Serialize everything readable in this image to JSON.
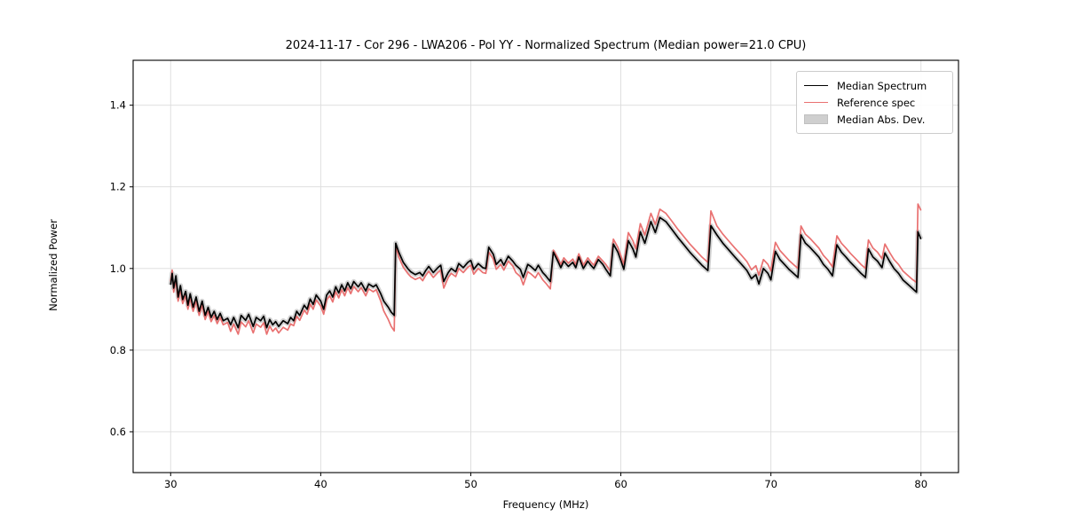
{
  "title": "2024-11-17 - Cor 296 - LWA206 - Pol YY - Normalized Spectrum (Median power=21.0 CPU)",
  "legend": {
    "items": [
      {
        "label": "Median Spectrum",
        "type": "line",
        "color": "#000000"
      },
      {
        "label": "Reference spec",
        "type": "line",
        "color": "#e97171"
      },
      {
        "label": "Median Abs. Dev.",
        "type": "patch",
        "color": "#cfcfcf"
      }
    ]
  },
  "colors": {
    "grid": "#dcdcdc",
    "spine": "#000000",
    "band": "#c3c3c3"
  },
  "chart_data": {
    "type": "line",
    "title": "2024-11-17 - Cor 296 - LWA206 - Pol YY - Normalized Spectrum (Median power=21.0 CPU)",
    "xlabel": "Frequency (MHz)",
    "ylabel": "Normalized Power",
    "xlim": [
      27.5,
      82.5
    ],
    "ylim": [
      0.5,
      1.51
    ],
    "xticks": [
      30,
      40,
      50,
      60,
      70,
      80
    ],
    "yticks": [
      0.6,
      0.8,
      1.0,
      1.2,
      1.4
    ],
    "grid": true,
    "legend_position": "upper right",
    "x": [
      30.0,
      30.1,
      30.2,
      30.35,
      30.5,
      30.65,
      30.8,
      31.0,
      31.15,
      31.3,
      31.5,
      31.7,
      31.9,
      32.1,
      32.3,
      32.5,
      32.7,
      32.9,
      33.1,
      33.3,
      33.5,
      33.8,
      34.0,
      34.2,
      34.5,
      34.7,
      35.0,
      35.2,
      35.5,
      35.7,
      36.0,
      36.2,
      36.4,
      36.6,
      36.8,
      37.0,
      37.2,
      37.5,
      37.8,
      38.0,
      38.2,
      38.4,
      38.6,
      38.9,
      39.1,
      39.3,
      39.5,
      39.7,
      40.0,
      40.2,
      40.4,
      40.6,
      40.8,
      41.0,
      41.2,
      41.4,
      41.6,
      41.8,
      42.0,
      42.2,
      42.5,
      42.7,
      43.0,
      43.2,
      43.5,
      43.7,
      44.0,
      44.2,
      44.5,
      44.7,
      44.9,
      45.0,
      45.2,
      45.5,
      45.8,
      46.0,
      46.3,
      46.6,
      46.8,
      47.0,
      47.2,
      47.5,
      47.8,
      48.0,
      48.2,
      48.5,
      48.7,
      49.0,
      49.2,
      49.5,
      49.8,
      50.0,
      50.2,
      50.5,
      50.8,
      51.0,
      51.2,
      51.5,
      51.7,
      52.0,
      52.2,
      52.5,
      52.8,
      53.0,
      53.3,
      53.5,
      53.8,
      54.0,
      54.3,
      54.5,
      54.8,
      55.0,
      55.3,
      55.5,
      55.8,
      56.0,
      56.2,
      56.5,
      56.8,
      57.0,
      57.2,
      57.5,
      57.8,
      58.0,
      58.2,
      58.5,
      58.8,
      59.0,
      59.3,
      59.5,
      59.8,
      60.0,
      60.2,
      60.5,
      60.8,
      61.0,
      61.3,
      61.6,
      62.0,
      62.3,
      62.6,
      63.0,
      63.4,
      63.8,
      64.2,
      64.6,
      65.0,
      65.4,
      65.8,
      66.0,
      66.4,
      66.8,
      67.2,
      67.6,
      68.0,
      68.4,
      68.7,
      69.0,
      69.2,
      69.5,
      69.8,
      70.0,
      70.3,
      70.6,
      70.9,
      71.2,
      71.5,
      71.8,
      72.0,
      72.3,
      72.6,
      72.9,
      73.2,
      73.5,
      73.8,
      74.1,
      74.4,
      74.7,
      75.0,
      75.3,
      75.7,
      76.0,
      76.3,
      76.5,
      76.8,
      77.1,
      77.4,
      77.6,
      77.9,
      78.2,
      78.5,
      78.8,
      79.1,
      79.4,
      79.7,
      79.8,
      80.0
    ],
    "series": [
      {
        "name": "Median Spectrum",
        "color": "#000000",
        "values": [
          0.96,
          0.988,
          0.952,
          0.982,
          0.93,
          0.958,
          0.924,
          0.944,
          0.91,
          0.938,
          0.905,
          0.93,
          0.895,
          0.92,
          0.885,
          0.905,
          0.88,
          0.895,
          0.875,
          0.89,
          0.872,
          0.878,
          0.862,
          0.88,
          0.855,
          0.885,
          0.873,
          0.888,
          0.858,
          0.88,
          0.872,
          0.883,
          0.855,
          0.875,
          0.862,
          0.87,
          0.858,
          0.872,
          0.865,
          0.88,
          0.872,
          0.895,
          0.885,
          0.91,
          0.9,
          0.925,
          0.912,
          0.935,
          0.92,
          0.9,
          0.935,
          0.945,
          0.93,
          0.955,
          0.94,
          0.96,
          0.945,
          0.965,
          0.95,
          0.968,
          0.955,
          0.965,
          0.945,
          0.962,
          0.955,
          0.96,
          0.938,
          0.92,
          0.905,
          0.893,
          0.885,
          1.062,
          1.04,
          1.015,
          1.0,
          0.992,
          0.985,
          0.99,
          0.982,
          0.995,
          1.005,
          0.99,
          1.002,
          1.008,
          0.968,
          0.99,
          1.0,
          0.992,
          1.012,
          1.002,
          1.015,
          1.02,
          0.998,
          1.012,
          1.002,
          1.0,
          1.052,
          1.035,
          1.01,
          1.022,
          1.008,
          1.03,
          1.018,
          1.008,
          0.998,
          0.978,
          1.01,
          1.005,
          0.995,
          1.008,
          0.99,
          0.982,
          0.968,
          1.04,
          1.018,
          1.002,
          1.018,
          1.005,
          1.015,
          1.002,
          1.028,
          1.0,
          1.018,
          1.008,
          1.0,
          1.022,
          1.01,
          0.998,
          0.982,
          1.06,
          1.04,
          1.02,
          0.998,
          1.068,
          1.048,
          1.028,
          1.09,
          1.062,
          1.115,
          1.088,
          1.125,
          1.115,
          1.096,
          1.076,
          1.058,
          1.04,
          1.024,
          1.008,
          0.995,
          1.105,
          1.082,
          1.062,
          1.045,
          1.028,
          1.012,
          0.995,
          0.975,
          0.985,
          0.962,
          1.0,
          0.988,
          0.972,
          1.042,
          1.022,
          1.01,
          0.998,
          0.988,
          0.978,
          1.082,
          1.062,
          1.052,
          1.04,
          1.028,
          1.01,
          0.998,
          0.982,
          1.058,
          1.04,
          1.028,
          1.015,
          1.0,
          0.988,
          0.978,
          1.048,
          1.028,
          1.018,
          1.002,
          1.038,
          1.018,
          1.0,
          0.988,
          0.972,
          0.962,
          0.952,
          0.942,
          1.09,
          1.072
        ]
      },
      {
        "name": "Reference spec",
        "color": "#e97171",
        "values": [
          0.968,
          0.996,
          0.942,
          0.972,
          0.92,
          0.948,
          0.914,
          0.934,
          0.9,
          0.928,
          0.895,
          0.92,
          0.885,
          0.91,
          0.875,
          0.895,
          0.87,
          0.885,
          0.865,
          0.88,
          0.862,
          0.868,
          0.846,
          0.864,
          0.839,
          0.869,
          0.857,
          0.872,
          0.842,
          0.864,
          0.856,
          0.867,
          0.839,
          0.859,
          0.846,
          0.854,
          0.842,
          0.856,
          0.849,
          0.864,
          0.86,
          0.883,
          0.873,
          0.898,
          0.888,
          0.913,
          0.9,
          0.923,
          0.908,
          0.888,
          0.923,
          0.933,
          0.918,
          0.943,
          0.928,
          0.948,
          0.933,
          0.953,
          0.938,
          0.956,
          0.943,
          0.953,
          0.933,
          0.95,
          0.943,
          0.948,
          0.92,
          0.896,
          0.875,
          0.858,
          0.847,
          1.054,
          1.028,
          1.003,
          0.988,
          0.98,
          0.973,
          0.978,
          0.97,
          0.983,
          0.993,
          0.978,
          0.99,
          0.996,
          0.952,
          0.978,
          0.988,
          0.98,
          1.0,
          0.99,
          1.003,
          1.008,
          0.986,
          1.0,
          0.99,
          0.988,
          1.04,
          1.023,
          0.998,
          1.01,
          0.996,
          1.018,
          1.006,
          0.99,
          0.98,
          0.96,
          0.992,
          0.987,
          0.977,
          0.99,
          0.972,
          0.964,
          0.95,
          1.045,
          1.026,
          1.01,
          1.026,
          1.013,
          1.023,
          1.01,
          1.036,
          1.008,
          1.026,
          1.016,
          1.008,
          1.03,
          1.018,
          1.01,
          0.994,
          1.072,
          1.052,
          1.032,
          1.01,
          1.088,
          1.068,
          1.048,
          1.11,
          1.082,
          1.135,
          1.108,
          1.145,
          1.135,
          1.116,
          1.096,
          1.078,
          1.06,
          1.044,
          1.028,
          1.015,
          1.141,
          1.104,
          1.084,
          1.067,
          1.05,
          1.034,
          1.017,
          0.997,
          1.007,
          0.984,
          1.022,
          1.01,
          0.994,
          1.064,
          1.044,
          1.032,
          1.02,
          1.01,
          1.0,
          1.104,
          1.084,
          1.074,
          1.062,
          1.05,
          1.032,
          1.02,
          1.004,
          1.08,
          1.062,
          1.05,
          1.037,
          1.022,
          1.01,
          1.0,
          1.07,
          1.05,
          1.04,
          1.024,
          1.06,
          1.04,
          1.022,
          1.01,
          0.994,
          0.984,
          0.974,
          0.966,
          1.158,
          1.142
        ]
      },
      {
        "name": "Median Abs. Dev.",
        "type": "band",
        "color": "#c3c3c3",
        "around": "Median Spectrum",
        "half_width": 0.006
      }
    ]
  }
}
